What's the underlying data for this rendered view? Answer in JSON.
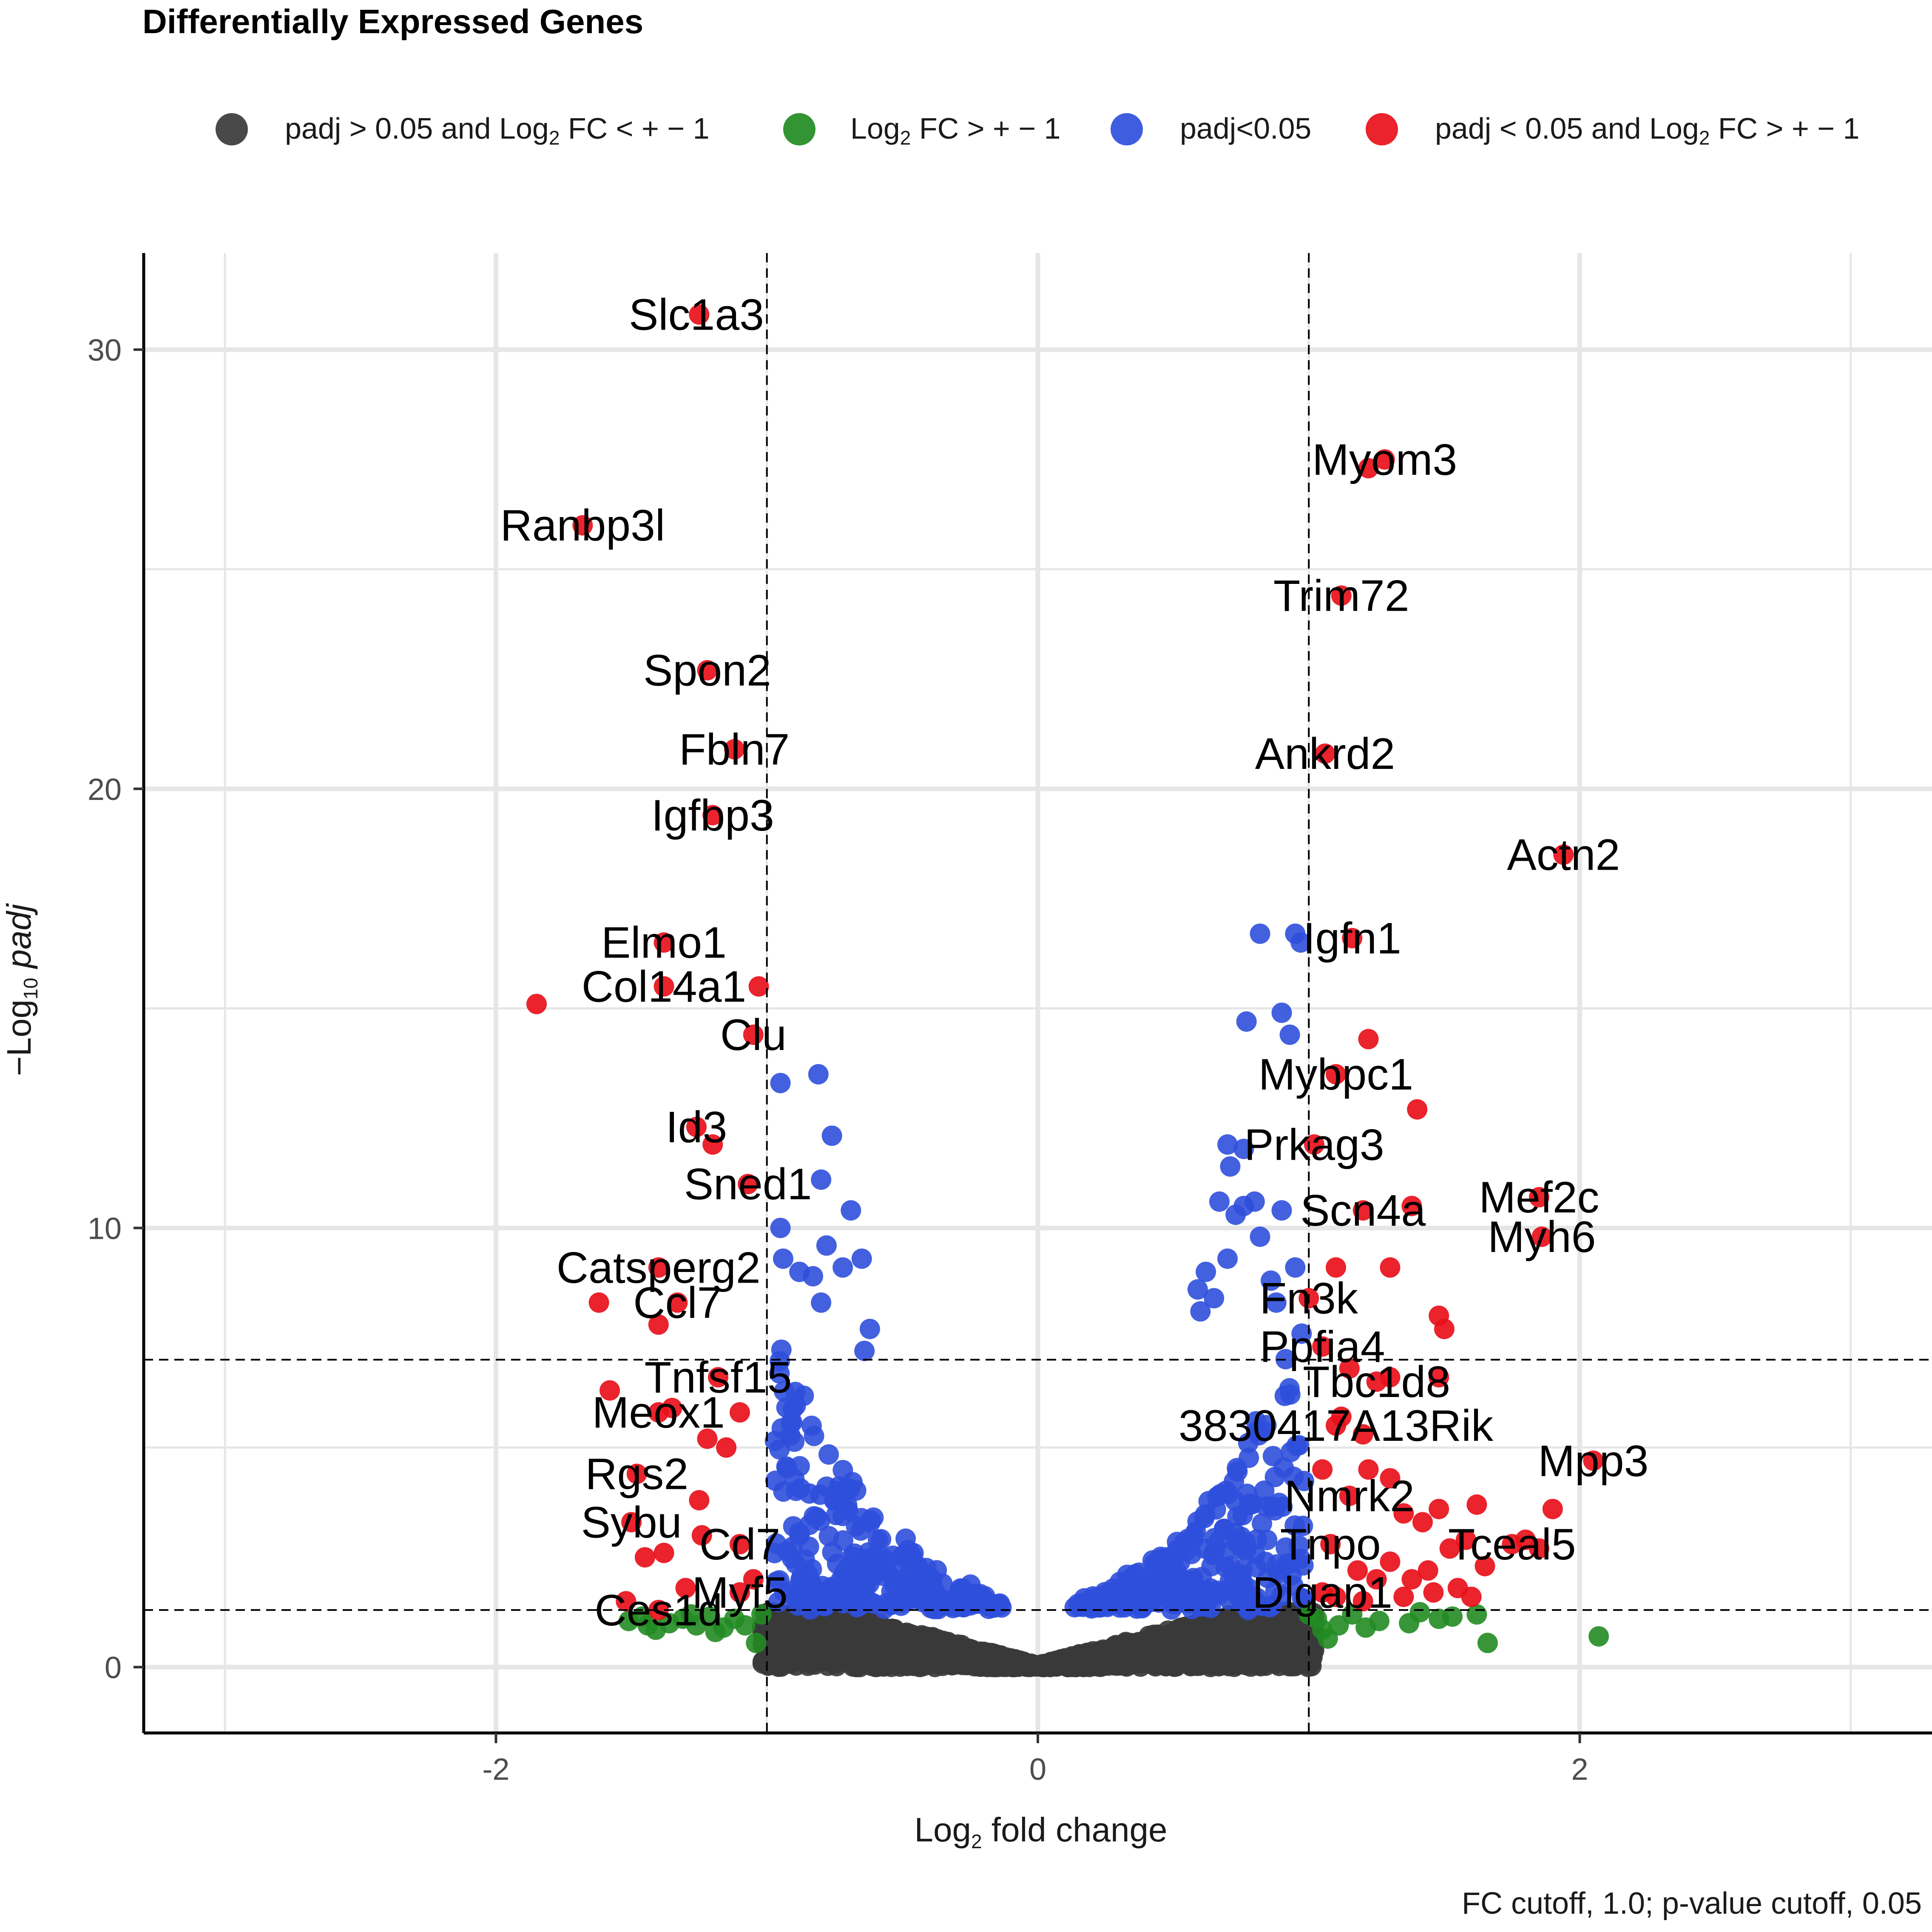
{
  "colors": {
    "ns": "#3a3a3a",
    "fc": "#228b22",
    "p": "#2f4fdc",
    "both": "#e8101a",
    "grid": "#e6e6e6",
    "axis": "#000000"
  },
  "chart_data": {
    "type": "scatter",
    "title": "Differentially Expressed Genes",
    "xlabel": "Log2 fold change",
    "ylabel": "-Log10 padj",
    "caption": "FC cutoff, 1.0; p-value cutoff, 0.05",
    "xlim": [
      -3.3,
      3.3
    ],
    "ylim": [
      -1.5,
      32.2
    ],
    "x_ticks": [
      -2,
      0,
      2
    ],
    "y_ticks": [
      0,
      10,
      20,
      30
    ],
    "fc_cutoff": 1.0,
    "p_cutoff_neglog10": 1.3,
    "extra_hline": 7.0,
    "legend": [
      {
        "key": "ns",
        "label": "padj > 0.05 and Log2 FC < + - 1"
      },
      {
        "key": "fc",
        "label": "Log2 FC > + - 1"
      },
      {
        "key": "p",
        "label": "padj<0.05"
      },
      {
        "key": "both",
        "label": "padj < 0.05 and Log2 FC > + - 1"
      }
    ],
    "labeled_genes": [
      {
        "gene": "Slc1a3",
        "x": -1.25,
        "y": 30.8,
        "lx": -1.26,
        "ly": 30.8
      },
      {
        "gene": "Ranbp3l",
        "x": -1.68,
        "y": 26.0,
        "lx": -1.68,
        "ly": 26.0
      },
      {
        "gene": "Spon2",
        "x": -1.22,
        "y": 22.7,
        "lx": -1.22,
        "ly": 22.7
      },
      {
        "gene": "Fbln7",
        "x": -1.12,
        "y": 20.9,
        "lx": -1.12,
        "ly": 20.9
      },
      {
        "gene": "Igfbp3",
        "x": -1.2,
        "y": 19.4,
        "lx": -1.2,
        "ly": 19.4
      },
      {
        "gene": "Elmo1",
        "x": -1.38,
        "y": 16.5,
        "lx": -1.38,
        "ly": 16.5
      },
      {
        "gene": "Col14a1",
        "x": -1.38,
        "y": 15.5,
        "lx": -1.38,
        "ly": 15.5
      },
      {
        "gene": "Clu",
        "x": -1.05,
        "y": 14.4,
        "lx": -1.05,
        "ly": 14.4
      },
      {
        "gene": "Id3",
        "x": -1.26,
        "y": 12.3,
        "lx": -1.26,
        "ly": 12.3
      },
      {
        "gene": "Sned1",
        "x": -1.07,
        "y": 11.0,
        "lx": -1.07,
        "ly": 11.0
      },
      {
        "gene": "Catsperg2",
        "x": -1.4,
        "y": 9.1,
        "lx": -1.4,
        "ly": 9.1
      },
      {
        "gene": "Ccl7",
        "x": -1.33,
        "y": 8.3,
        "lx": -1.33,
        "ly": 8.3
      },
      {
        "gene": "Tnfsf15",
        "x": -1.18,
        "y": 6.6,
        "lx": -1.18,
        "ly": 6.6
      },
      {
        "gene": "Meox1",
        "x": -1.4,
        "y": 5.8,
        "lx": -1.4,
        "ly": 5.8
      },
      {
        "gene": "Rgs2",
        "x": -1.48,
        "y": 4.4,
        "lx": -1.48,
        "ly": 4.4
      },
      {
        "gene": "Sybu",
        "x": -1.5,
        "y": 3.3,
        "lx": -1.5,
        "ly": 3.3
      },
      {
        "gene": "Cd7",
        "x": -1.1,
        "y": 2.8,
        "lx": -1.1,
        "ly": 2.8
      },
      {
        "gene": "Myf5",
        "x": -1.1,
        "y": 1.7,
        "lx": -1.1,
        "ly": 1.7
      },
      {
        "gene": "Ces1d",
        "x": -1.4,
        "y": 1.3,
        "lx": -1.4,
        "ly": 1.3
      },
      {
        "gene": "Myom3",
        "x": 1.28,
        "y": 27.5,
        "lx": 1.28,
        "ly": 27.5
      },
      {
        "gene": "Trim72",
        "x": 1.12,
        "y": 24.4,
        "lx": 1.12,
        "ly": 24.4
      },
      {
        "gene": "Ankrd2",
        "x": 1.06,
        "y": 20.8,
        "lx": 1.06,
        "ly": 20.8
      },
      {
        "gene": "Actn2",
        "x": 1.94,
        "y": 18.5,
        "lx": 1.94,
        "ly": 18.5
      },
      {
        "gene": "Igfn1",
        "x": 1.16,
        "y": 16.6,
        "lx": 1.16,
        "ly": 16.6
      },
      {
        "gene": "Mybpc1",
        "x": 1.1,
        "y": 13.5,
        "lx": 1.1,
        "ly": 13.5
      },
      {
        "gene": "Prkag3",
        "x": 1.02,
        "y": 11.9,
        "lx": 1.02,
        "ly": 11.9
      },
      {
        "gene": "Scn4a",
        "x": 1.2,
        "y": 10.4,
        "lx": 1.2,
        "ly": 10.4
      },
      {
        "gene": "Mef2c",
        "x": 1.85,
        "y": 10.7,
        "lx": 1.85,
        "ly": 10.7
      },
      {
        "gene": "Myh6",
        "x": 1.86,
        "y": 9.8,
        "lx": 1.86,
        "ly": 9.8
      },
      {
        "gene": "Fn3k",
        "x": 1.0,
        "y": 8.4,
        "lx": 1.0,
        "ly": 8.4
      },
      {
        "gene": "Ppfia4",
        "x": 1.05,
        "y": 7.3,
        "lx": 1.05,
        "ly": 7.3
      },
      {
        "gene": "Tbc1d8",
        "x": 1.25,
        "y": 6.5,
        "lx": 1.25,
        "ly": 6.5
      },
      {
        "gene": "3830417A13Rik",
        "x": 1.1,
        "y": 5.5,
        "lx": 1.1,
        "ly": 5.5
      },
      {
        "gene": "Mpp3",
        "x": 2.05,
        "y": 4.7,
        "lx": 2.05,
        "ly": 4.7
      },
      {
        "gene": "Nmrk2",
        "x": 1.15,
        "y": 3.9,
        "lx": 1.15,
        "ly": 3.9
      },
      {
        "gene": "Tnpo",
        "x": 1.08,
        "y": 2.8,
        "lx": 1.08,
        "ly": 2.8
      },
      {
        "gene": "Tceal5",
        "x": 1.75,
        "y": 2.8,
        "lx": 1.75,
        "ly": 2.8
      },
      {
        "gene": "Dlgap1",
        "x": 1.05,
        "y": 1.7,
        "lx": 1.05,
        "ly": 1.7
      }
    ],
    "unlabeled_sig": [
      {
        "x": -1.85,
        "y": 15.1
      },
      {
        "x": -1.03,
        "y": 15.5
      },
      {
        "x": -1.2,
        "y": 11.9
      },
      {
        "x": -1.62,
        "y": 8.3
      },
      {
        "x": -1.4,
        "y": 7.8
      },
      {
        "x": -1.58,
        "y": 6.3
      },
      {
        "x": -1.35,
        "y": 5.9
      },
      {
        "x": -1.1,
        "y": 5.8
      },
      {
        "x": -1.22,
        "y": 5.2
      },
      {
        "x": -1.15,
        "y": 5.0
      },
      {
        "x": -1.25,
        "y": 3.8
      },
      {
        "x": -1.38,
        "y": 2.6
      },
      {
        "x": -1.24,
        "y": 3.0
      },
      {
        "x": -1.45,
        "y": 2.5
      },
      {
        "x": -1.05,
        "y": 2.0
      },
      {
        "x": -1.3,
        "y": 1.8
      },
      {
        "x": -1.52,
        "y": 1.5
      },
      {
        "x": 1.22,
        "y": 27.3
      },
      {
        "x": 1.22,
        "y": 14.3
      },
      {
        "x": 1.4,
        "y": 12.7
      },
      {
        "x": 1.38,
        "y": 10.5
      },
      {
        "x": 1.3,
        "y": 9.1
      },
      {
        "x": 1.1,
        "y": 9.1
      },
      {
        "x": 1.48,
        "y": 8.0
      },
      {
        "x": 1.5,
        "y": 7.7
      },
      {
        "x": 1.48,
        "y": 6.6
      },
      {
        "x": 1.15,
        "y": 6.8
      },
      {
        "x": 1.3,
        "y": 6.6
      },
      {
        "x": 1.12,
        "y": 5.7
      },
      {
        "x": 1.2,
        "y": 5.3
      },
      {
        "x": 1.22,
        "y": 4.5
      },
      {
        "x": 1.3,
        "y": 4.3
      },
      {
        "x": 1.05,
        "y": 4.5
      },
      {
        "x": 1.9,
        "y": 3.6
      },
      {
        "x": 1.62,
        "y": 3.7
      },
      {
        "x": 1.48,
        "y": 3.6
      },
      {
        "x": 1.42,
        "y": 3.3
      },
      {
        "x": 1.35,
        "y": 3.5
      },
      {
        "x": 1.8,
        "y": 2.9
      },
      {
        "x": 1.85,
        "y": 2.7
      },
      {
        "x": 1.58,
        "y": 2.9
      },
      {
        "x": 1.52,
        "y": 2.7
      },
      {
        "x": 1.44,
        "y": 2.2
      },
      {
        "x": 1.38,
        "y": 2.0
      },
      {
        "x": 1.3,
        "y": 2.4
      },
      {
        "x": 1.25,
        "y": 2.0
      },
      {
        "x": 1.18,
        "y": 2.2
      },
      {
        "x": 1.55,
        "y": 1.8
      },
      {
        "x": 1.6,
        "y": 1.6
      },
      {
        "x": 1.46,
        "y": 1.7
      },
      {
        "x": 1.35,
        "y": 1.6
      },
      {
        "x": 1.2,
        "y": 1.5
      },
      {
        "x": 1.1,
        "y": 1.6
      },
      {
        "x": 1.65,
        "y": 2.3
      }
    ],
    "fc_only": [
      {
        "x": 1.66,
        "y": 0.55
      },
      {
        "x": 2.07,
        "y": 0.7
      },
      {
        "x": 1.62,
        "y": 1.2
      },
      {
        "x": 1.53,
        "y": 1.15
      },
      {
        "x": 1.48,
        "y": 1.1
      },
      {
        "x": 1.41,
        "y": 1.25
      },
      {
        "x": 1.37,
        "y": 1.0
      },
      {
        "x": 1.26,
        "y": 1.05
      },
      {
        "x": 1.21,
        "y": 0.9
      },
      {
        "x": 1.16,
        "y": 1.2
      },
      {
        "x": 1.11,
        "y": 0.95
      },
      {
        "x": 1.07,
        "y": 0.65
      },
      {
        "x": 1.03,
        "y": 1.1
      },
      {
        "x": 1.05,
        "y": 0.85
      },
      {
        "x": 1.0,
        "y": 1.2
      },
      {
        "x": -1.04,
        "y": 0.55
      },
      {
        "x": -1.08,
        "y": 0.95
      },
      {
        "x": -1.12,
        "y": 1.1
      },
      {
        "x": -1.16,
        "y": 0.9
      },
      {
        "x": -1.21,
        "y": 1.15
      },
      {
        "x": -1.26,
        "y": 0.95
      },
      {
        "x": -1.31,
        "y": 1.1
      },
      {
        "x": -1.36,
        "y": 1.0
      },
      {
        "x": -1.41,
        "y": 0.85
      },
      {
        "x": -1.46,
        "y": 1.15
      },
      {
        "x": -1.51,
        "y": 1.05
      },
      {
        "x": -1.19,
        "y": 0.8
      },
      {
        "x": -1.02,
        "y": 1.2
      },
      {
        "x": -1.28,
        "y": 1.2
      },
      {
        "x": -1.44,
        "y": 0.95
      }
    ],
    "sig_only_scatter": [
      {
        "x": 0.82,
        "y": 16.7
      },
      {
        "x": 0.95,
        "y": 16.7
      },
      {
        "x": 0.97,
        "y": 16.5
      },
      {
        "x": 0.9,
        "y": 14.9
      },
      {
        "x": 0.77,
        "y": 14.7
      },
      {
        "x": 0.93,
        "y": 14.4
      },
      {
        "x": 0.7,
        "y": 11.9
      },
      {
        "x": 0.76,
        "y": 11.8
      },
      {
        "x": 0.71,
        "y": 11.4
      },
      {
        "x": 0.67,
        "y": 10.6
      },
      {
        "x": 0.76,
        "y": 10.5
      },
      {
        "x": 0.8,
        "y": 10.6
      },
      {
        "x": 0.9,
        "y": 10.4
      },
      {
        "x": 0.73,
        "y": 10.3
      },
      {
        "x": 0.82,
        "y": 9.8
      },
      {
        "x": 0.7,
        "y": 9.3
      },
      {
        "x": 0.62,
        "y": 9.0
      },
      {
        "x": 0.95,
        "y": 9.1
      },
      {
        "x": 0.86,
        "y": 8.8
      },
      {
        "x": 0.59,
        "y": 8.6
      },
      {
        "x": 0.65,
        "y": 8.4
      },
      {
        "x": 0.6,
        "y": 8.1
      },
      {
        "x": 0.88,
        "y": 8.3
      },
      {
        "x": -0.81,
        "y": 13.5
      },
      {
        "x": -0.95,
        "y": 13.3
      },
      {
        "x": -0.76,
        "y": 12.1
      },
      {
        "x": -0.8,
        "y": 11.1
      },
      {
        "x": -0.69,
        "y": 10.4
      },
      {
        "x": -0.95,
        "y": 10.0
      },
      {
        "x": -0.78,
        "y": 9.6
      },
      {
        "x": -0.72,
        "y": 9.1
      },
      {
        "x": -0.65,
        "y": 9.3
      },
      {
        "x": -0.88,
        "y": 9.0
      },
      {
        "x": -0.83,
        "y": 8.9
      },
      {
        "x": -0.94,
        "y": 9.3
      },
      {
        "x": -0.8,
        "y": 8.3
      },
      {
        "x": -0.62,
        "y": 7.7
      },
      {
        "x": -0.64,
        "y": 7.2
      }
    ]
  }
}
